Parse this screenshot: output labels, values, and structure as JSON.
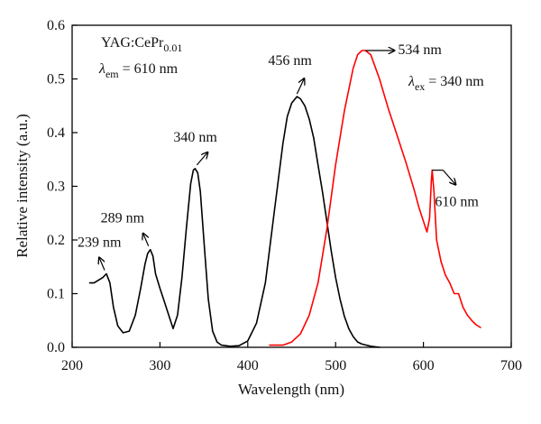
{
  "chart_data": {
    "type": "line",
    "xlabel": "Wavelength (nm)",
    "ylabel": "Relative intensity (a.u.)",
    "xlim": [
      200,
      700
    ],
    "ylim": [
      0.0,
      0.6
    ],
    "x_ticks": [
      200,
      300,
      400,
      500,
      600,
      700
    ],
    "y_ticks": [
      0.0,
      0.1,
      0.2,
      0.3,
      0.4,
      0.5,
      0.6
    ],
    "y_tick_labels": [
      "0.0",
      "0.1",
      "0.2",
      "0.3",
      "0.4",
      "0.5",
      "0.6"
    ],
    "grid": false,
    "series": [
      {
        "id": "excitation",
        "color": "#000000",
        "legend_label": "YAG:CePr",
        "legend_label_sub": "0.01",
        "condition_symbol": "λ",
        "condition_sub": "em",
        "condition_value": " = 610 nm",
        "x": [
          220,
          225,
          230,
          235,
          239,
          243,
          247,
          252,
          258,
          265,
          272,
          278,
          283,
          286,
          289,
          292,
          295,
          300,
          305,
          310,
          315,
          320,
          325,
          330,
          335,
          338,
          340,
          343,
          346,
          350,
          355,
          360,
          365,
          370,
          380,
          390,
          400,
          410,
          420,
          430,
          440,
          445,
          450,
          456,
          460,
          465,
          470,
          475,
          480,
          485,
          490,
          495,
          500,
          505,
          510,
          515,
          520,
          525,
          530,
          540,
          550
        ],
        "y": [
          0.12,
          0.12,
          0.125,
          0.13,
          0.137,
          0.12,
          0.075,
          0.04,
          0.027,
          0.03,
          0.06,
          0.11,
          0.155,
          0.175,
          0.182,
          0.17,
          0.137,
          0.11,
          0.085,
          0.06,
          0.035,
          0.06,
          0.13,
          0.22,
          0.305,
          0.33,
          0.333,
          0.325,
          0.29,
          0.2,
          0.09,
          0.03,
          0.01,
          0.004,
          0.002,
          0.003,
          0.012,
          0.045,
          0.12,
          0.25,
          0.38,
          0.43,
          0.455,
          0.467,
          0.463,
          0.45,
          0.425,
          0.39,
          0.34,
          0.29,
          0.235,
          0.18,
          0.13,
          0.09,
          0.058,
          0.035,
          0.02,
          0.01,
          0.006,
          0.002,
          0.0
        ]
      },
      {
        "id": "emission",
        "color": "#ff0000",
        "condition_symbol": "λ",
        "condition_sub": "ex",
        "condition_value": " = 340 nm",
        "x": [
          425,
          440,
          450,
          460,
          470,
          480,
          490,
          500,
          510,
          520,
          525,
          530,
          534,
          540,
          550,
          560,
          570,
          580,
          590,
          595,
          600,
          604,
          607,
          609,
          610,
          612,
          615,
          620,
          625,
          630,
          635,
          640,
          645,
          650,
          655,
          660,
          665
        ],
        "y": [
          0.004,
          0.004,
          0.01,
          0.025,
          0.06,
          0.12,
          0.22,
          0.34,
          0.44,
          0.52,
          0.545,
          0.553,
          0.553,
          0.545,
          0.5,
          0.445,
          0.395,
          0.345,
          0.29,
          0.26,
          0.235,
          0.215,
          0.24,
          0.31,
          0.33,
          0.29,
          0.2,
          0.16,
          0.135,
          0.12,
          0.1,
          0.1,
          0.075,
          0.06,
          0.05,
          0.042,
          0.037
        ]
      }
    ],
    "annotations": [
      {
        "id": "239",
        "text": "239 nm",
        "x": 239,
        "y": 0.137
      },
      {
        "id": "289",
        "text": "289 nm",
        "x": 289,
        "y": 0.182
      },
      {
        "id": "340",
        "text": "340 nm",
        "x": 340,
        "y": 0.333
      },
      {
        "id": "456",
        "text": "456 nm",
        "x": 456,
        "y": 0.467
      },
      {
        "id": "534",
        "text": "534 nm",
        "x": 534,
        "y": 0.553
      },
      {
        "id": "610",
        "text": "610 nm",
        "x": 610,
        "y": 0.33
      }
    ]
  }
}
